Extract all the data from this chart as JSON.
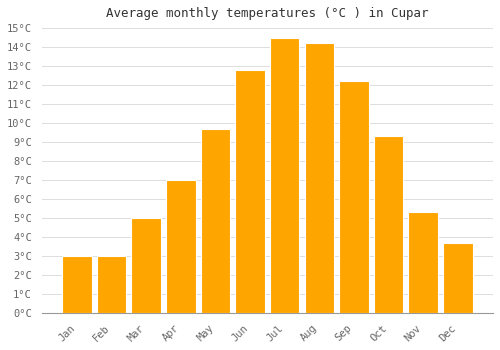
{
  "months": [
    "Jan",
    "Feb",
    "Mar",
    "Apr",
    "May",
    "Jun",
    "Jul",
    "Aug",
    "Sep",
    "Oct",
    "Nov",
    "Dec"
  ],
  "values": [
    3.0,
    3.0,
    5.0,
    7.0,
    9.7,
    12.8,
    14.5,
    14.2,
    12.2,
    9.3,
    5.3,
    3.7
  ],
  "title": "Average monthly temperatures (°C ) in Cupar",
  "ylim": [
    0,
    15
  ],
  "yticks": [
    0,
    1,
    2,
    3,
    4,
    5,
    6,
    7,
    8,
    9,
    10,
    11,
    12,
    13,
    14,
    15
  ],
  "bar_color": "#FFA500",
  "bar_edge_color": "#FFFFFF",
  "background_color": "#FFFFFF",
  "grid_color": "#DDDDDD",
  "font_color": "#666666",
  "title_font_color": "#333333",
  "bar_width": 0.85
}
